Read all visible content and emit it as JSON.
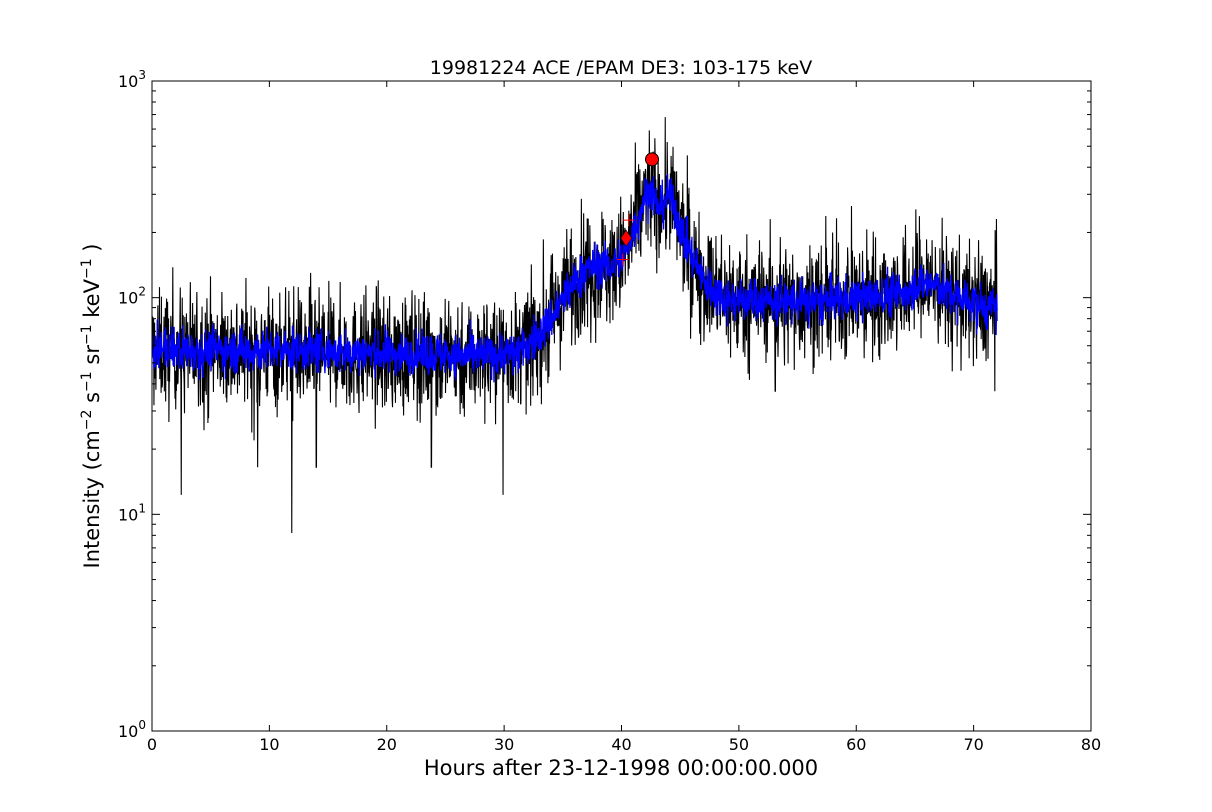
{
  "chart_data": {
    "type": "line",
    "title": "19981224 ACE /EPAM DE3: 103-175 keV",
    "xlabel": "Hours after 23-12-1998 00:00:00.000",
    "ylabel": {
      "prefix": "Intensity (cm",
      "sup1": "−2",
      "mid1": " s",
      "sup2": "−1",
      "mid2": " sr",
      "sup3": "−1",
      "mid3": " keV",
      "sup4": "−1",
      "suffix": " )"
    },
    "xlim": [
      0,
      80
    ],
    "ylim": [
      1,
      1000
    ],
    "yscale": "log",
    "grid": false,
    "x_ticks": [
      {
        "value": 0,
        "label": "0"
      },
      {
        "value": 10,
        "label": "10"
      },
      {
        "value": 20,
        "label": "20"
      },
      {
        "value": 30,
        "label": "30"
      },
      {
        "value": 40,
        "label": "40"
      },
      {
        "value": 50,
        "label": "50"
      },
      {
        "value": 60,
        "label": "60"
      },
      {
        "value": 70,
        "label": "70"
      },
      {
        "value": 80,
        "label": "80"
      }
    ],
    "y_ticks": [
      {
        "value": 1,
        "base": "10",
        "exp": "0"
      },
      {
        "value": 10,
        "base": "10",
        "exp": "1"
      },
      {
        "value": 100,
        "base": "10",
        "exp": "2"
      },
      {
        "value": 1000,
        "base": "10",
        "exp": "3"
      }
    ],
    "series": [
      {
        "style": "noisy-raw",
        "color": "#000000",
        "x": [
          0,
          2,
          4,
          6,
          8,
          10,
          12,
          14,
          16,
          18,
          20,
          22,
          24,
          26,
          28,
          30,
          31,
          32,
          33,
          34,
          35,
          36,
          37,
          38,
          39,
          40,
          41,
          42,
          42.6,
          43,
          43.5,
          44,
          44.5,
          45,
          46,
          47,
          48,
          49,
          50,
          52,
          54,
          56,
          58,
          60,
          62,
          64,
          65,
          66,
          67,
          68,
          70,
          71,
          72
        ],
        "y": [
          58,
          58,
          57,
          58,
          57,
          57,
          57,
          57,
          56,
          56,
          55,
          55,
          55,
          54,
          54,
          55,
          56,
          60,
          68,
          80,
          98,
          118,
          135,
          142,
          140,
          150,
          200,
          290,
          320,
          260,
          270,
          300,
          260,
          210,
          155,
          120,
          105,
          100,
          98,
          97,
          96,
          95,
          97,
          100,
          102,
          105,
          115,
          118,
          112,
          103,
          95,
          90,
          88
        ],
        "noise": [
          0.19,
          0.3
        ],
        "spikes": [
          {
            "x": 2.5,
            "y": 12.3
          },
          {
            "x": 9,
            "y": 16.5
          },
          {
            "x": 11.9,
            "y": 8.2
          },
          {
            "x": 14,
            "y": 16.5
          },
          {
            "x": 23.8,
            "y": 16.5
          },
          {
            "x": 29.9,
            "y": 12.3
          },
          {
            "x": 53.1,
            "y": 37
          },
          {
            "x": 71.8,
            "y": 37
          }
        ]
      },
      {
        "style": "smoothed-band",
        "color": "#0000ff",
        "x": [
          0,
          2,
          4,
          6,
          8,
          10,
          12,
          14,
          16,
          18,
          20,
          22,
          24,
          26,
          28,
          30,
          31,
          32,
          33,
          34,
          35,
          36,
          37,
          38,
          39,
          40,
          41,
          42,
          42.6,
          43,
          43.5,
          44,
          44.5,
          45,
          46,
          47,
          48,
          49,
          50,
          52,
          54,
          56,
          58,
          60,
          62,
          64,
          65,
          66,
          67,
          68,
          70,
          71,
          72
        ],
        "y": [
          58,
          58,
          57,
          58,
          57,
          57,
          57,
          57,
          56,
          56,
          55,
          55,
          55,
          54,
          54,
          55,
          56,
          60,
          68,
          80,
          98,
          118,
          135,
          142,
          140,
          150,
          200,
          290,
          320,
          260,
          270,
          300,
          260,
          210,
          155,
          120,
          105,
          100,
          98,
          97,
          96,
          95,
          97,
          100,
          102,
          105,
          115,
          118,
          112,
          103,
          95,
          90,
          88
        ],
        "noise": [
          0.07,
          0.11
        ]
      }
    ],
    "markers": [
      {
        "name": "peak-circle",
        "shape": "circle",
        "x": 42.6,
        "y": 435,
        "color": "#ff0000"
      },
      {
        "name": "onset-diamond",
        "shape": "diamond",
        "x": 40.4,
        "y": 188,
        "color": "#ff0000"
      },
      {
        "name": "plus-marker-upper",
        "shape": "plus",
        "x": 40.6,
        "y": 228,
        "color": "#ff0000"
      },
      {
        "name": "plus-marker-lower",
        "shape": "plus",
        "x": 40.1,
        "y": 150,
        "color": "#ff0000"
      }
    ]
  }
}
